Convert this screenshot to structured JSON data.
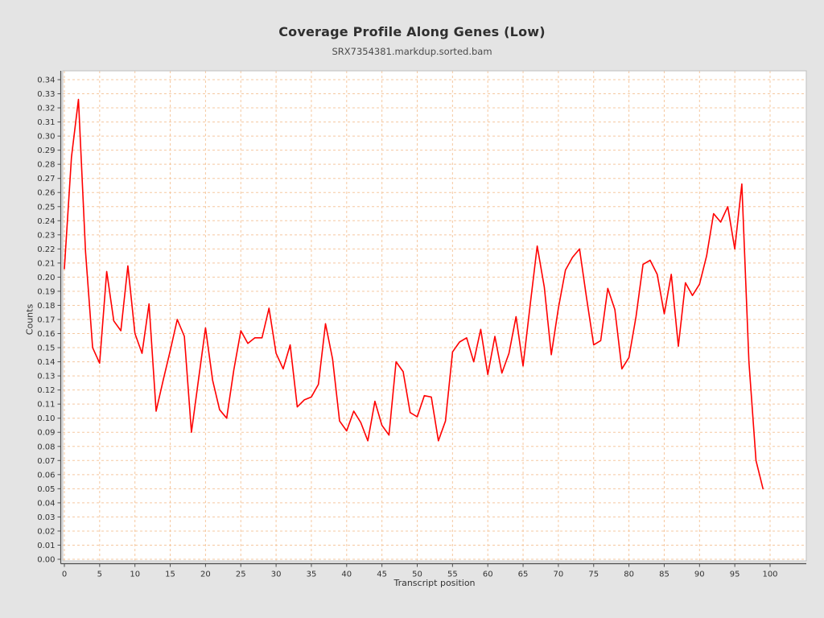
{
  "chart_data": {
    "type": "line",
    "title": "Coverage Profile Along Genes (Low)",
    "subtitle": "SRX7354381.markdup.sorted.bam",
    "xlabel": "Transcript position",
    "ylabel": "Counts",
    "xlim": [
      0,
      100
    ],
    "ylim": [
      0,
      0.34
    ],
    "x_tick_step": 5,
    "y_tick_step": 0.01,
    "y_tick_decimals": 2,
    "grid": "dashed",
    "legend_position": "none",
    "background_color": "#e4e4e4",
    "plot_background_color": "#ffffff",
    "grid_color": "#f5c8a0",
    "axis_color": "#4d4d4d",
    "outline_color": "#bfbfbf",
    "series": [
      {
        "name": "SRX7354381.markdup.sorted.bam",
        "color": "#ff0000",
        "x": [
          0,
          1,
          2,
          3,
          4,
          5,
          6,
          7,
          8,
          9,
          10,
          11,
          12,
          13,
          14,
          15,
          16,
          17,
          18,
          19,
          20,
          21,
          22,
          23,
          24,
          25,
          26,
          27,
          28,
          29,
          30,
          31,
          32,
          33,
          34,
          35,
          36,
          37,
          38,
          39,
          40,
          41,
          42,
          43,
          44,
          45,
          46,
          47,
          48,
          49,
          50,
          51,
          52,
          53,
          54,
          55,
          56,
          57,
          58,
          59,
          60,
          61,
          62,
          63,
          64,
          65,
          66,
          67,
          68,
          69,
          70,
          71,
          72,
          73,
          74,
          75,
          76,
          77,
          78,
          79,
          80,
          81,
          82,
          83,
          84,
          85,
          86,
          87,
          88,
          89,
          90,
          91,
          92,
          93,
          94,
          95,
          96,
          97,
          98,
          99
        ],
        "values": [
          0.206,
          0.285,
          0.326,
          0.218,
          0.15,
          0.139,
          0.204,
          0.169,
          0.162,
          0.208,
          0.16,
          0.146,
          0.181,
          0.105,
          0.127,
          0.148,
          0.17,
          0.158,
          0.09,
          0.127,
          0.164,
          0.127,
          0.106,
          0.1,
          0.134,
          0.162,
          0.153,
          0.157,
          0.157,
          0.178,
          0.146,
          0.135,
          0.152,
          0.108,
          0.113,
          0.115,
          0.124,
          0.167,
          0.142,
          0.098,
          0.091,
          0.105,
          0.097,
          0.084,
          0.112,
          0.095,
          0.088,
          0.14,
          0.133,
          0.104,
          0.101,
          0.116,
          0.115,
          0.084,
          0.098,
          0.147,
          0.154,
          0.157,
          0.14,
          0.163,
          0.131,
          0.158,
          0.132,
          0.146,
          0.172,
          0.137,
          0.18,
          0.222,
          0.193,
          0.145,
          0.178,
          0.205,
          0.214,
          0.22,
          0.185,
          0.152,
          0.155,
          0.192,
          0.177,
          0.135,
          0.143,
          0.172,
          0.209,
          0.212,
          0.202,
          0.174,
          0.202,
          0.151,
          0.196,
          0.187,
          0.195,
          0.215,
          0.245,
          0.239,
          0.25,
          0.22,
          0.266,
          0.14,
          0.07,
          0.05
        ]
      }
    ]
  }
}
